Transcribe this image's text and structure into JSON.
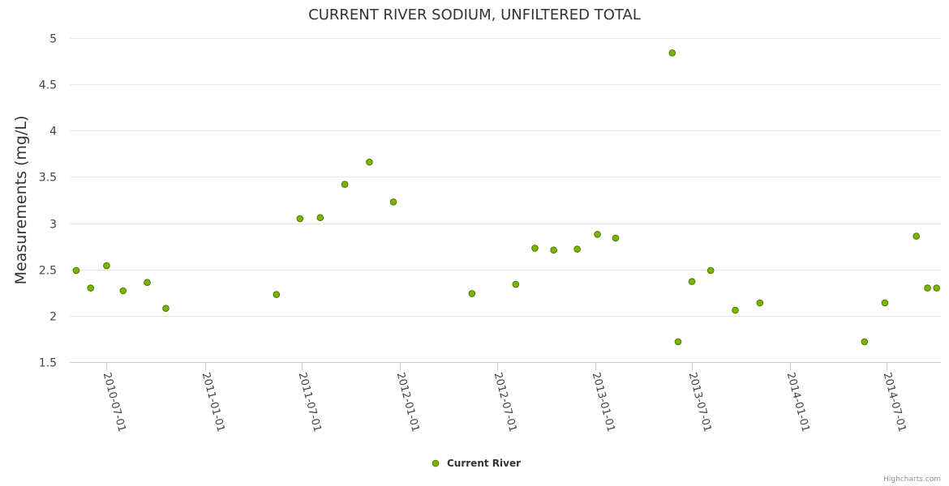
{
  "chart_data": {
    "type": "scatter",
    "title": "CURRENT RIVER SODIUM, UNFILTERED TOTAL",
    "xlabel": "",
    "ylabel": "Measurements (mg/L)",
    "ylim": [
      1.5,
      5
    ],
    "yticks": [
      "1.5",
      "2",
      "2.5",
      "3",
      "3.5",
      "4",
      "4.5",
      "5"
    ],
    "xlim": [
      "2010-04-23",
      "2014-10-10"
    ],
    "xticks": [
      "2010-07-01",
      "2011-01-01",
      "2011-07-01",
      "2012-01-01",
      "2012-07-01",
      "2013-01-01",
      "2013-07-01",
      "2014-01-01",
      "2014-07-01"
    ],
    "legend": "bottom-center",
    "color": "#7cb500",
    "credits": "Highcharts.com",
    "series": [
      {
        "name": "Current River",
        "points": [
          {
            "x": "2010-05-05",
            "y": 2.49
          },
          {
            "x": "2010-06-01",
            "y": 2.3
          },
          {
            "x": "2010-07-01",
            "y": 2.54
          },
          {
            "x": "2010-08-01",
            "y": 2.27
          },
          {
            "x": "2010-09-15",
            "y": 2.36
          },
          {
            "x": "2010-10-20",
            "y": 2.08
          },
          {
            "x": "2011-05-15",
            "y": 2.23
          },
          {
            "x": "2011-06-28",
            "y": 3.05
          },
          {
            "x": "2011-08-05",
            "y": 3.06
          },
          {
            "x": "2011-09-20",
            "y": 3.42
          },
          {
            "x": "2011-11-05",
            "y": 3.66
          },
          {
            "x": "2011-12-20",
            "y": 3.23
          },
          {
            "x": "2012-05-15",
            "y": 2.24
          },
          {
            "x": "2012-08-05",
            "y": 2.34
          },
          {
            "x": "2012-09-10",
            "y": 2.73
          },
          {
            "x": "2012-10-15",
            "y": 2.71
          },
          {
            "x": "2012-11-28",
            "y": 2.72
          },
          {
            "x": "2013-01-05",
            "y": 2.88
          },
          {
            "x": "2013-02-08",
            "y": 2.84
          },
          {
            "x": "2013-05-25",
            "y": 4.84
          },
          {
            "x": "2013-06-05",
            "y": 1.72
          },
          {
            "x": "2013-07-01",
            "y": 2.37
          },
          {
            "x": "2013-08-05",
            "y": 2.49
          },
          {
            "x": "2013-09-20",
            "y": 2.06
          },
          {
            "x": "2013-11-05",
            "y": 2.14
          },
          {
            "x": "2014-05-20",
            "y": 1.72
          },
          {
            "x": "2014-06-27",
            "y": 2.14
          },
          {
            "x": "2014-08-25",
            "y": 2.86
          },
          {
            "x": "2014-09-15",
            "y": 2.3
          },
          {
            "x": "2014-10-02",
            "y": 2.3
          }
        ]
      }
    ]
  }
}
